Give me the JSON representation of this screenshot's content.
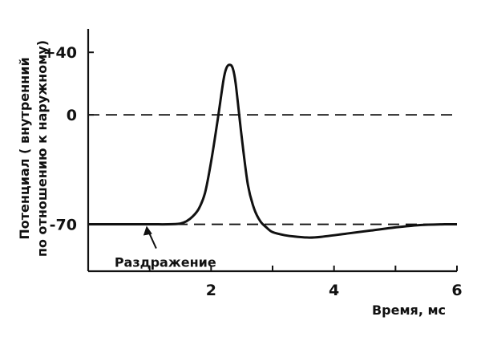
{
  "chart_data": {
    "type": "line",
    "title": "",
    "xlabel": "Время, мс",
    "ylabel_lines": [
      "Потенциал ( внутренний",
      "по отношению к наружному)"
    ],
    "xlim": [
      0,
      6
    ],
    "ylim": [
      -100,
      55
    ],
    "x_ticks": [
      1,
      2,
      3,
      4,
      5,
      6
    ],
    "x_tick_labels": [
      {
        "x": 2,
        "label": "2"
      },
      {
        "x": 4,
        "label": "4"
      },
      {
        "x": 6,
        "label": "6"
      }
    ],
    "y_tick_labels": [
      {
        "y": 40,
        "label": "+40"
      },
      {
        "y": 0,
        "label": "0"
      },
      {
        "y": -70,
        "label": "-70"
      }
    ],
    "reference_lines": [
      {
        "y": 0,
        "style": "dashed"
      },
      {
        "y": -70,
        "style": "dashed"
      }
    ],
    "annotation": {
      "text": "Раздражение",
      "x": 0.95,
      "y": -70
    },
    "grid": false,
    "series": [
      {
        "points": [
          [
            0,
            -70
          ],
          [
            0.95,
            -70
          ],
          [
            1.3,
            -70
          ],
          [
            1.5,
            -69.5
          ],
          [
            1.6,
            -68
          ],
          [
            1.7,
            -65
          ],
          [
            1.8,
            -60
          ],
          [
            1.9,
            -50
          ],
          [
            2.0,
            -30
          ],
          [
            2.1,
            -5
          ],
          [
            2.2,
            22
          ],
          [
            2.25,
            30
          ],
          [
            2.3,
            32
          ],
          [
            2.35,
            30
          ],
          [
            2.4,
            20
          ],
          [
            2.5,
            -15
          ],
          [
            2.6,
            -45
          ],
          [
            2.7,
            -60
          ],
          [
            2.8,
            -68
          ],
          [
            2.9,
            -72
          ],
          [
            3.0,
            -75
          ],
          [
            3.2,
            -77
          ],
          [
            3.4,
            -78
          ],
          [
            3.6,
            -78.5
          ],
          [
            3.8,
            -78
          ],
          [
            4.2,
            -76
          ],
          [
            4.6,
            -74
          ],
          [
            5.0,
            -72
          ],
          [
            5.4,
            -70.5
          ],
          [
            5.8,
            -70
          ],
          [
            6.0,
            -70
          ]
        ]
      }
    ]
  }
}
